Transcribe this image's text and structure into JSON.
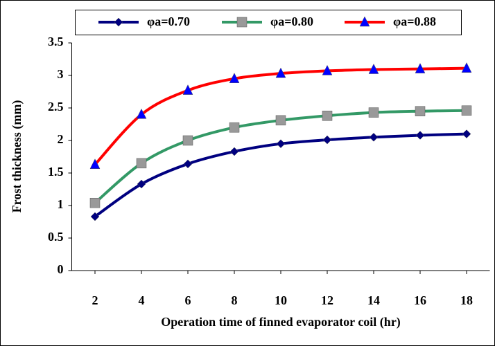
{
  "chart_data": {
    "type": "line",
    "x_label": "Operation time of finned evaporator coil (hr)",
    "y_label": "Frost thickness (mm)",
    "x": [
      2,
      4,
      6,
      8,
      10,
      12,
      14,
      16,
      18
    ],
    "xlim": [
      1,
      19
    ],
    "xticks": [
      2,
      4,
      6,
      8,
      10,
      12,
      14,
      16,
      18
    ],
    "ylim": [
      0,
      3.5
    ],
    "yticks": [
      0,
      0.5,
      1,
      1.5,
      2,
      2.5,
      3,
      3.5
    ],
    "grid": false,
    "legend": "top",
    "smooth": true,
    "series": [
      {
        "name": "φa=0.70",
        "color": "#000080",
        "marker": "diamond",
        "marker_color": "#000080",
        "values": [
          0.83,
          1.33,
          1.64,
          1.83,
          1.95,
          2.01,
          2.05,
          2.08,
          2.1
        ]
      },
      {
        "name": "φa=0.80",
        "color": "#339966",
        "marker": "square",
        "marker_color": "#999999",
        "values": [
          1.04,
          1.65,
          2.0,
          2.2,
          2.31,
          2.38,
          2.43,
          2.45,
          2.46
        ]
      },
      {
        "name": "φa=0.88",
        "color": "#ff0000",
        "marker": "triangle",
        "marker_color": "#0000ff",
        "values": [
          1.63,
          2.4,
          2.77,
          2.95,
          3.03,
          3.07,
          3.09,
          3.1,
          3.11
        ]
      }
    ]
  }
}
